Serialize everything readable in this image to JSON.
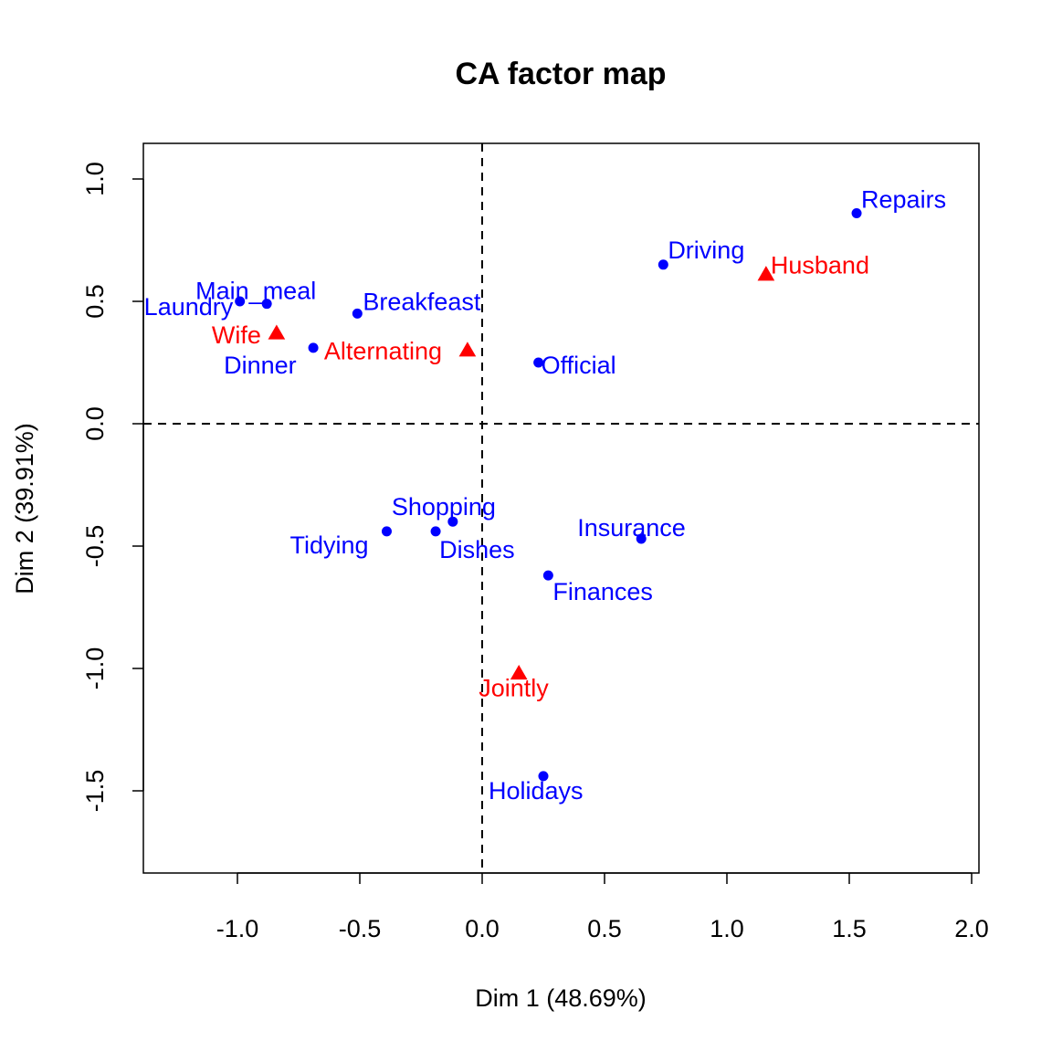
{
  "chart_data": {
    "type": "scatter",
    "title": "CA factor map",
    "xlabel": "Dim 1 (48.69%)",
    "ylabel": "Dim 2 (39.91%)",
    "xlim": [
      -1.38,
      2.02
    ],
    "ylim": [
      -1.83,
      1.15
    ],
    "xticks": [
      -1.0,
      -0.5,
      0.0,
      0.5,
      1.0,
      1.5,
      2.0
    ],
    "xtick_labels": [
      "-1.0",
      "-0.5",
      "0.0",
      "0.5",
      "1.0",
      "1.5",
      "2.0"
    ],
    "yticks": [
      1.0,
      0.5,
      0.0,
      -0.5,
      -1.0,
      -1.5
    ],
    "ytick_labels": [
      "1.0",
      "0.5",
      "0.0",
      "-0.5",
      "-1.0",
      "-1.5"
    ],
    "grid": false,
    "reference_lines": [
      "x = 0 (dashed)",
      "y = 0 (dashed)"
    ],
    "colors": {
      "rows": "#0000ff",
      "columns": "#ff0000"
    },
    "series": [
      {
        "marker": "circle",
        "color": "#0000ff",
        "points": [
          {
            "label": "Laundry",
            "x": -0.99,
            "y": 0.5
          },
          {
            "label": "Main_meal",
            "x": -0.88,
            "y": 0.49
          },
          {
            "label": "Dinner",
            "x": -0.69,
            "y": 0.31
          },
          {
            "label": "Breakfeast",
            "x": -0.51,
            "y": 0.45
          },
          {
            "label": "Tidying",
            "x": -0.39,
            "y": -0.44
          },
          {
            "label": "Dishes",
            "x": -0.19,
            "y": -0.44
          },
          {
            "label": "Shopping",
            "x": -0.12,
            "y": -0.4
          },
          {
            "label": "Official",
            "x": 0.23,
            "y": 0.25
          },
          {
            "label": "Driving",
            "x": 0.74,
            "y": 0.65
          },
          {
            "label": "Finances",
            "x": 0.27,
            "y": -0.62
          },
          {
            "label": "Insurance",
            "x": 0.65,
            "y": -0.47
          },
          {
            "label": "Repairs",
            "x": 1.53,
            "y": 0.86
          },
          {
            "label": "Holidays",
            "x": 0.25,
            "y": -1.44
          }
        ]
      },
      {
        "marker": "triangle",
        "color": "#ff0000",
        "points": [
          {
            "label": "Wife",
            "x": -0.84,
            "y": 0.37
          },
          {
            "label": "Alternating",
            "x": -0.06,
            "y": 0.3
          },
          {
            "label": "Husband",
            "x": 1.16,
            "y": 0.61
          },
          {
            "label": "Jointly",
            "x": 0.15,
            "y": -1.02
          }
        ]
      }
    ]
  }
}
